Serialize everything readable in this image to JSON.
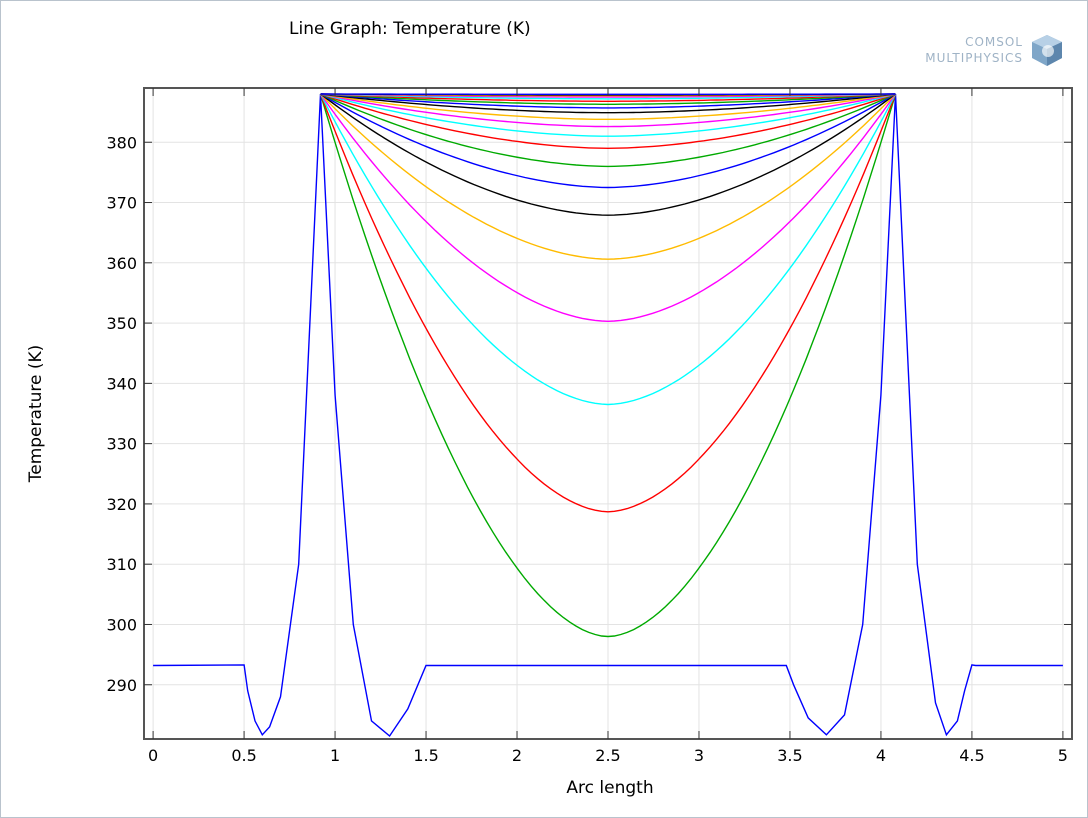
{
  "header": {
    "title": "Line Graph: Temperature (K)",
    "logo_line1": "COMSOL",
    "logo_line2": "MULTIPHYSICS"
  },
  "chart_data": {
    "type": "line",
    "title": "Line Graph: Temperature (K)",
    "xlabel": "Arc length",
    "ylabel": "Temperature (K)",
    "xlim": [
      -0.05,
      5.05
    ],
    "ylim": [
      281,
      389
    ],
    "grid": true,
    "x_ticks": [
      0,
      0.5,
      1,
      1.5,
      2,
      2.5,
      3,
      3.5,
      4,
      4.5,
      5
    ],
    "x_tick_labels": [
      "0",
      "0.5",
      "1",
      "1.5",
      "2",
      "2.5",
      "3",
      "3.5",
      "4",
      "4.5",
      "5"
    ],
    "y_ticks": [
      290,
      300,
      310,
      320,
      330,
      340,
      350,
      360,
      370,
      380
    ],
    "y_tick_labels": [
      "290",
      "300",
      "310",
      "320",
      "330",
      "340",
      "350",
      "360",
      "370",
      "380"
    ],
    "series": [
      {
        "color": "#0000ff",
        "x": [
          0,
          0.5,
          0.52,
          0.56,
          0.6,
          0.64,
          0.7,
          0.8,
          0.92,
          1.0,
          1.1,
          1.2,
          1.3,
          1.4,
          1.5,
          1.58,
          1.62,
          2.0,
          2.5,
          3.0,
          3.48,
          3.52,
          3.6,
          3.7,
          3.8,
          3.9,
          4.0,
          4.08,
          4.2,
          4.3,
          4.36,
          4.42,
          4.46,
          4.5,
          4.52,
          5.0
        ],
        "y": [
          293.2,
          293.3,
          289,
          284,
          281.7,
          283,
          288,
          310,
          388,
          338,
          300,
          284,
          281.5,
          286,
          293.2,
          293.2,
          293.2,
          293.2,
          293.2,
          293.2,
          293.2,
          290,
          284.5,
          281.7,
          285,
          300,
          338,
          388,
          310,
          287,
          281.7,
          284,
          289,
          293.3,
          293.2,
          293.2
        ]
      },
      {
        "color": "#00aa00",
        "vmin": 298.0
      },
      {
        "color": "#ff0000",
        "vmin": 318.7
      },
      {
        "color": "#00ffff",
        "vmin": 336.5
      },
      {
        "color": "#ff00ff",
        "vmin": 350.3
      },
      {
        "color": "#ffbb00",
        "vmin": 360.6
      },
      {
        "color": "#000000",
        "vmin": 367.9
      },
      {
        "color": "#0000ff",
        "vmin": 372.5
      },
      {
        "color": "#00aa00",
        "vmin": 376.0
      },
      {
        "color": "#ff0000",
        "vmin": 379.0
      },
      {
        "color": "#00ffff",
        "vmin": 381.0
      },
      {
        "color": "#ff00ff",
        "vmin": 382.6
      },
      {
        "color": "#ffbb00",
        "vmin": 383.8
      },
      {
        "color": "#000000",
        "vmin": 384.9
      },
      {
        "color": "#0000ff",
        "vmin": 385.7
      },
      {
        "color": "#00aa00",
        "vmin": 386.3
      },
      {
        "color": "#ff0000",
        "vmin": 386.8
      },
      {
        "color": "#00ffff",
        "vmin": 387.2
      },
      {
        "color": "#ff00ff",
        "vmin": 387.5
      },
      {
        "color": "#ffbb00",
        "vmin": 387.7
      },
      {
        "color": "#000000",
        "vmin": 387.85
      },
      {
        "color": "#0000ff",
        "vmin": 387.95
      }
    ],
    "bowl_x_range": [
      0.92,
      4.08
    ],
    "peak_value": 388
  }
}
